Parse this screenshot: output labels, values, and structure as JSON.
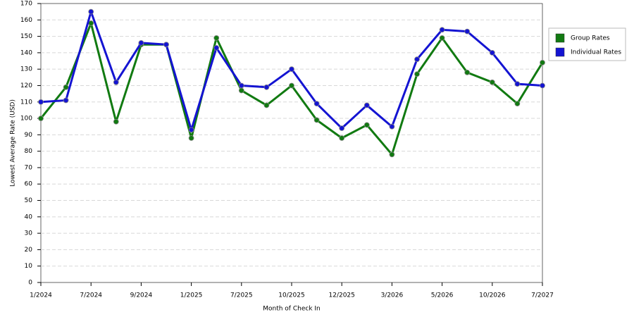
{
  "chart_data": {
    "type": "line",
    "x_label": "Month of Check In",
    "y_label": "Lowest Average Rate (USD)",
    "categories": [
      "1/2024",
      null,
      "7/2024",
      null,
      "9/2024",
      null,
      "1/2025",
      null,
      "7/2025",
      null,
      "10/2025",
      null,
      "12/2025",
      null,
      "3/2026",
      null,
      "5/2026",
      null,
      "10/2026",
      null,
      "7/2027"
    ],
    "series": [
      {
        "name": "Group Rates",
        "color": "#117a11",
        "values": [
          100,
          119,
          158,
          98,
          145,
          145,
          88,
          149,
          117,
          108,
          120,
          99,
          88,
          96,
          78,
          127,
          149,
          128,
          122,
          109,
          134
        ]
      },
      {
        "name": "Individual Rates",
        "color": "#1414d2",
        "values": [
          110,
          111,
          165,
          122,
          146,
          145,
          93,
          143,
          120,
          119,
          130,
          109,
          94,
          108,
          95,
          136,
          154,
          153,
          140,
          121,
          120
        ]
      }
    ],
    "ylim": [
      0,
      170
    ],
    "yticks": [
      0,
      10,
      20,
      30,
      40,
      50,
      60,
      70,
      80,
      90,
      100,
      110,
      120,
      130,
      140,
      150,
      160,
      170
    ],
    "grid": true,
    "legend": "right"
  }
}
